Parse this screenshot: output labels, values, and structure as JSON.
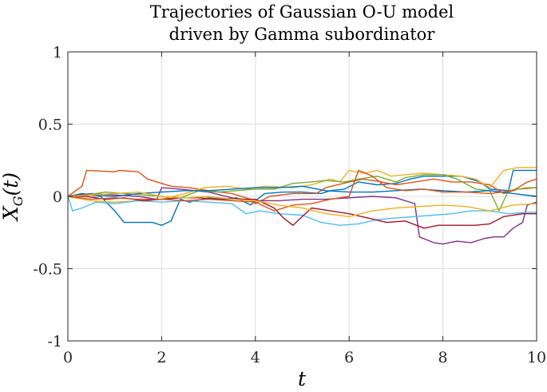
{
  "chart_data": {
    "type": "line",
    "title": [
      "Trajectories of Gaussian O-U model",
      "driven by Gamma subordinator"
    ],
    "xlabel": "t",
    "ylabel": {
      "main": "X",
      "sub": "G",
      "suffix": "(t)"
    },
    "xlim": [
      0,
      10
    ],
    "ylim": [
      -1,
      1
    ],
    "xticks": [
      0,
      2,
      4,
      6,
      8,
      10
    ],
    "yticks": [
      1,
      0.5,
      0,
      -0.5,
      -1
    ],
    "xtick_labels": [
      "0",
      "2",
      "4",
      "6",
      "8",
      "10"
    ],
    "ytick_labels": [
      "1",
      "0.5",
      "0",
      "-0.5",
      "-1"
    ],
    "grid": true,
    "series": [
      {
        "color": "#0072BD",
        "points": [
          [
            0,
            0
          ],
          [
            0.3,
            0.02
          ],
          [
            0.7,
            0.0
          ],
          [
            1.0,
            -0.1
          ],
          [
            1.2,
            -0.18
          ],
          [
            1.8,
            -0.18
          ],
          [
            2.0,
            -0.2
          ],
          [
            2.2,
            -0.17
          ],
          [
            2.4,
            -0.02
          ],
          [
            2.6,
            -0.04
          ],
          [
            3.0,
            -0.01
          ],
          [
            3.3,
            -0.02
          ],
          [
            3.6,
            -0.01
          ],
          [
            3.9,
            -0.06
          ],
          [
            4.0,
            -0.03
          ],
          [
            4.2,
            0.02
          ],
          [
            4.6,
            0.03
          ],
          [
            5.0,
            0.03
          ],
          [
            5.4,
            0.02
          ],
          [
            5.6,
            0.04
          ],
          [
            5.9,
            0.05
          ],
          [
            6.2,
            0.1
          ],
          [
            6.6,
            0.08
          ],
          [
            7.0,
            0.09
          ],
          [
            7.3,
            0.12
          ],
          [
            7.6,
            0.14
          ],
          [
            8.0,
            0.14
          ],
          [
            8.4,
            0.14
          ],
          [
            8.8,
            0.1
          ],
          [
            9.0,
            0.05
          ],
          [
            9.4,
            0.04
          ],
          [
            9.5,
            0.18
          ],
          [
            10,
            0.18
          ]
        ]
      },
      {
        "color": "#D95319",
        "points": [
          [
            0,
            0
          ],
          [
            0.3,
            0.07
          ],
          [
            0.4,
            0.18
          ],
          [
            1.0,
            0.17
          ],
          [
            1.1,
            0.18
          ],
          [
            1.5,
            0.17
          ],
          [
            1.7,
            0.12
          ],
          [
            2.0,
            0.09
          ],
          [
            2.2,
            0.07
          ],
          [
            2.6,
            0.06
          ],
          [
            3.0,
            0.04
          ],
          [
            3.5,
            0.02
          ],
          [
            3.9,
            -0.02
          ],
          [
            4.0,
            -0.05
          ],
          [
            4.3,
            0.0
          ],
          [
            4.8,
            0.02
          ],
          [
            5.3,
            0.02
          ],
          [
            5.5,
            0.06
          ],
          [
            6.0,
            0.1
          ],
          [
            6.3,
            0.12
          ],
          [
            6.7,
            0.1
          ],
          [
            7.0,
            0.08
          ],
          [
            7.4,
            0.1
          ],
          [
            7.8,
            0.12
          ],
          [
            8.2,
            0.1
          ],
          [
            8.6,
            0.1
          ],
          [
            9.0,
            0.08
          ],
          [
            9.3,
            0.02
          ],
          [
            9.6,
            0.05
          ],
          [
            10,
            0.06
          ]
        ]
      },
      {
        "color": "#EDB120",
        "points": [
          [
            0,
            0
          ],
          [
            0.5,
            -0.03
          ],
          [
            1.0,
            -0.04
          ],
          [
            1.5,
            -0.03
          ],
          [
            2.0,
            -0.02
          ],
          [
            2.5,
            0.02
          ],
          [
            2.9,
            0.06
          ],
          [
            3.4,
            0.07
          ],
          [
            3.8,
            0.05
          ],
          [
            4.2,
            0.07
          ],
          [
            4.8,
            0.06
          ],
          [
            5.2,
            0.08
          ],
          [
            5.6,
            0.12
          ],
          [
            5.8,
            0.1
          ],
          [
            6.0,
            0.18
          ],
          [
            6.3,
            0.16
          ],
          [
            6.6,
            0.18
          ],
          [
            6.9,
            0.14
          ],
          [
            7.2,
            0.15
          ],
          [
            7.6,
            0.16
          ],
          [
            8.0,
            0.15
          ],
          [
            8.4,
            0.14
          ],
          [
            8.7,
            0.12
          ],
          [
            9.0,
            0.06
          ],
          [
            9.3,
            0.18
          ],
          [
            9.6,
            0.2
          ],
          [
            10,
            0.2
          ]
        ]
      },
      {
        "color": "#7E2F8E",
        "points": [
          [
            0,
            0
          ],
          [
            0.5,
            0.02
          ],
          [
            1.0,
            0.01
          ],
          [
            1.5,
            0.0
          ],
          [
            1.9,
            -0.02
          ],
          [
            2.0,
            0.06
          ],
          [
            2.4,
            0.05
          ],
          [
            3.0,
            0.03
          ],
          [
            3.5,
            -0.01
          ],
          [
            4.0,
            -0.03
          ],
          [
            4.5,
            -0.03
          ],
          [
            5.0,
            -0.02
          ],
          [
            5.5,
            -0.02
          ],
          [
            6.0,
            -0.01
          ],
          [
            6.5,
            0.0
          ],
          [
            7.0,
            -0.01
          ],
          [
            7.4,
            -0.05
          ],
          [
            7.5,
            -0.28
          ],
          [
            7.8,
            -0.32
          ],
          [
            8.0,
            -0.33
          ],
          [
            8.3,
            -0.31
          ],
          [
            8.6,
            -0.32
          ],
          [
            8.9,
            -0.29
          ],
          [
            9.1,
            -0.28
          ],
          [
            9.3,
            -0.28
          ],
          [
            9.5,
            -0.22
          ],
          [
            9.7,
            -0.18
          ],
          [
            9.8,
            -0.06
          ],
          [
            10,
            -0.04
          ]
        ]
      },
      {
        "color": "#77AC30",
        "points": [
          [
            0,
            0
          ],
          [
            0.4,
            0.01
          ],
          [
            0.8,
            0.03
          ],
          [
            1.2,
            0.02
          ],
          [
            1.6,
            0.01
          ],
          [
            2.0,
            0.0
          ],
          [
            2.4,
            -0.01
          ],
          [
            2.8,
            0.04
          ],
          [
            3.2,
            0.03
          ],
          [
            3.6,
            0.04
          ],
          [
            4.0,
            0.05
          ],
          [
            4.4,
            0.05
          ],
          [
            4.8,
            0.09
          ],
          [
            5.2,
            0.1
          ],
          [
            5.5,
            0.11
          ],
          [
            5.9,
            0.1
          ],
          [
            6.2,
            0.12
          ],
          [
            6.6,
            0.14
          ],
          [
            7.0,
            0.1
          ],
          [
            7.2,
            0.13
          ],
          [
            7.6,
            0.15
          ],
          [
            8.0,
            0.15
          ],
          [
            8.3,
            0.12
          ],
          [
            8.7,
            0.05
          ],
          [
            9.0,
            0.04
          ],
          [
            9.2,
            -0.1
          ],
          [
            9.4,
            0.04
          ],
          [
            9.8,
            0.06
          ],
          [
            10,
            0.06
          ]
        ]
      },
      {
        "color": "#4DBEEE",
        "points": [
          [
            0,
            0
          ],
          [
            0.1,
            -0.1
          ],
          [
            0.3,
            -0.08
          ],
          [
            0.6,
            -0.04
          ],
          [
            1.0,
            -0.05
          ],
          [
            1.5,
            -0.03
          ],
          [
            2.0,
            -0.04
          ],
          [
            2.5,
            -0.03
          ],
          [
            3.0,
            -0.04
          ],
          [
            3.5,
            -0.05
          ],
          [
            3.8,
            -0.12
          ],
          [
            4.1,
            -0.1
          ],
          [
            4.5,
            -0.12
          ],
          [
            5.0,
            -0.13
          ],
          [
            5.4,
            -0.18
          ],
          [
            5.8,
            -0.2
          ],
          [
            6.2,
            -0.19
          ],
          [
            6.6,
            -0.16
          ],
          [
            7.0,
            -0.15
          ],
          [
            7.4,
            -0.14
          ],
          [
            7.8,
            -0.13
          ],
          [
            8.2,
            -0.12
          ],
          [
            8.6,
            -0.1
          ],
          [
            9.0,
            -0.1
          ],
          [
            9.4,
            -0.12
          ],
          [
            9.8,
            -0.11
          ],
          [
            10,
            -0.11
          ]
        ]
      },
      {
        "color": "#A2142F",
        "points": [
          [
            0,
            0
          ],
          [
            0.4,
            0.0
          ],
          [
            0.8,
            -0.02
          ],
          [
            1.2,
            -0.01
          ],
          [
            1.6,
            -0.03
          ],
          [
            2.0,
            -0.02
          ],
          [
            2.4,
            -0.01
          ],
          [
            2.8,
            -0.01
          ],
          [
            3.2,
            -0.02
          ],
          [
            3.6,
            -0.02
          ],
          [
            4.0,
            -0.02
          ],
          [
            4.4,
            -0.08
          ],
          [
            4.6,
            -0.15
          ],
          [
            4.8,
            -0.2
          ],
          [
            5.0,
            -0.14
          ],
          [
            5.2,
            -0.08
          ],
          [
            5.6,
            -0.1
          ],
          [
            6.0,
            -0.12
          ],
          [
            6.4,
            -0.15
          ],
          [
            6.8,
            -0.18
          ],
          [
            7.2,
            -0.17
          ],
          [
            7.6,
            -0.22
          ],
          [
            7.9,
            -0.2
          ],
          [
            8.3,
            -0.2
          ],
          [
            8.7,
            -0.2
          ],
          [
            9.0,
            -0.19
          ],
          [
            9.3,
            -0.14
          ],
          [
            9.7,
            -0.12
          ],
          [
            10,
            -0.12
          ]
        ]
      },
      {
        "color": "#0072BD",
        "points": [
          [
            0,
            0
          ],
          [
            0.5,
            0.01
          ],
          [
            1.0,
            0.0
          ],
          [
            1.5,
            0.02
          ],
          [
            2.0,
            0.03
          ],
          [
            2.5,
            0.04
          ],
          [
            3.0,
            0.04
          ],
          [
            3.5,
            0.05
          ],
          [
            4.0,
            0.06
          ],
          [
            4.5,
            0.06
          ],
          [
            5.0,
            0.07
          ],
          [
            5.5,
            0.04
          ],
          [
            6.0,
            0.03
          ],
          [
            6.5,
            0.03
          ],
          [
            7.0,
            0.04
          ],
          [
            7.5,
            0.05
          ],
          [
            8.0,
            0.04
          ],
          [
            8.5,
            0.03
          ],
          [
            9.0,
            0.04
          ],
          [
            9.5,
            0.02
          ],
          [
            10,
            0.0
          ]
        ]
      },
      {
        "color": "#D95319",
        "points": [
          [
            0,
            0
          ],
          [
            0.5,
            -0.02
          ],
          [
            1.0,
            -0.01
          ],
          [
            1.5,
            -0.02
          ],
          [
            2.0,
            -0.02
          ],
          [
            2.5,
            -0.03
          ],
          [
            3.0,
            -0.02
          ],
          [
            3.5,
            -0.03
          ],
          [
            4.0,
            -0.04
          ],
          [
            4.4,
            -0.1
          ],
          [
            4.8,
            -0.06
          ],
          [
            5.2,
            -0.05
          ],
          [
            5.6,
            -0.02
          ],
          [
            6.0,
            0.0
          ],
          [
            6.2,
            0.18
          ],
          [
            6.5,
            0.14
          ],
          [
            6.8,
            0.06
          ],
          [
            7.2,
            0.04
          ],
          [
            7.6,
            0.05
          ],
          [
            8.0,
            0.03
          ],
          [
            8.5,
            0.03
          ],
          [
            9.0,
            0.02
          ],
          [
            9.5,
            0.04
          ],
          [
            9.8,
            0.1
          ],
          [
            10,
            0.12
          ]
        ]
      },
      {
        "color": "#EDB120",
        "points": [
          [
            0,
            0
          ],
          [
            0.5,
            0.01
          ],
          [
            1.0,
            0.02
          ],
          [
            1.5,
            0.03
          ],
          [
            2.0,
            0.0
          ],
          [
            2.5,
            -0.01
          ],
          [
            3.0,
            0.0
          ],
          [
            3.5,
            -0.02
          ],
          [
            4.0,
            -0.03
          ],
          [
            4.5,
            -0.06
          ],
          [
            5.0,
            -0.08
          ],
          [
            5.5,
            -0.12
          ],
          [
            6.0,
            -0.14
          ],
          [
            6.5,
            -0.1
          ],
          [
            7.0,
            -0.08
          ],
          [
            7.5,
            -0.07
          ],
          [
            8.0,
            -0.06
          ],
          [
            8.5,
            -0.07
          ],
          [
            9.0,
            -0.1
          ],
          [
            9.5,
            -0.06
          ],
          [
            10,
            -0.05
          ]
        ]
      }
    ]
  }
}
